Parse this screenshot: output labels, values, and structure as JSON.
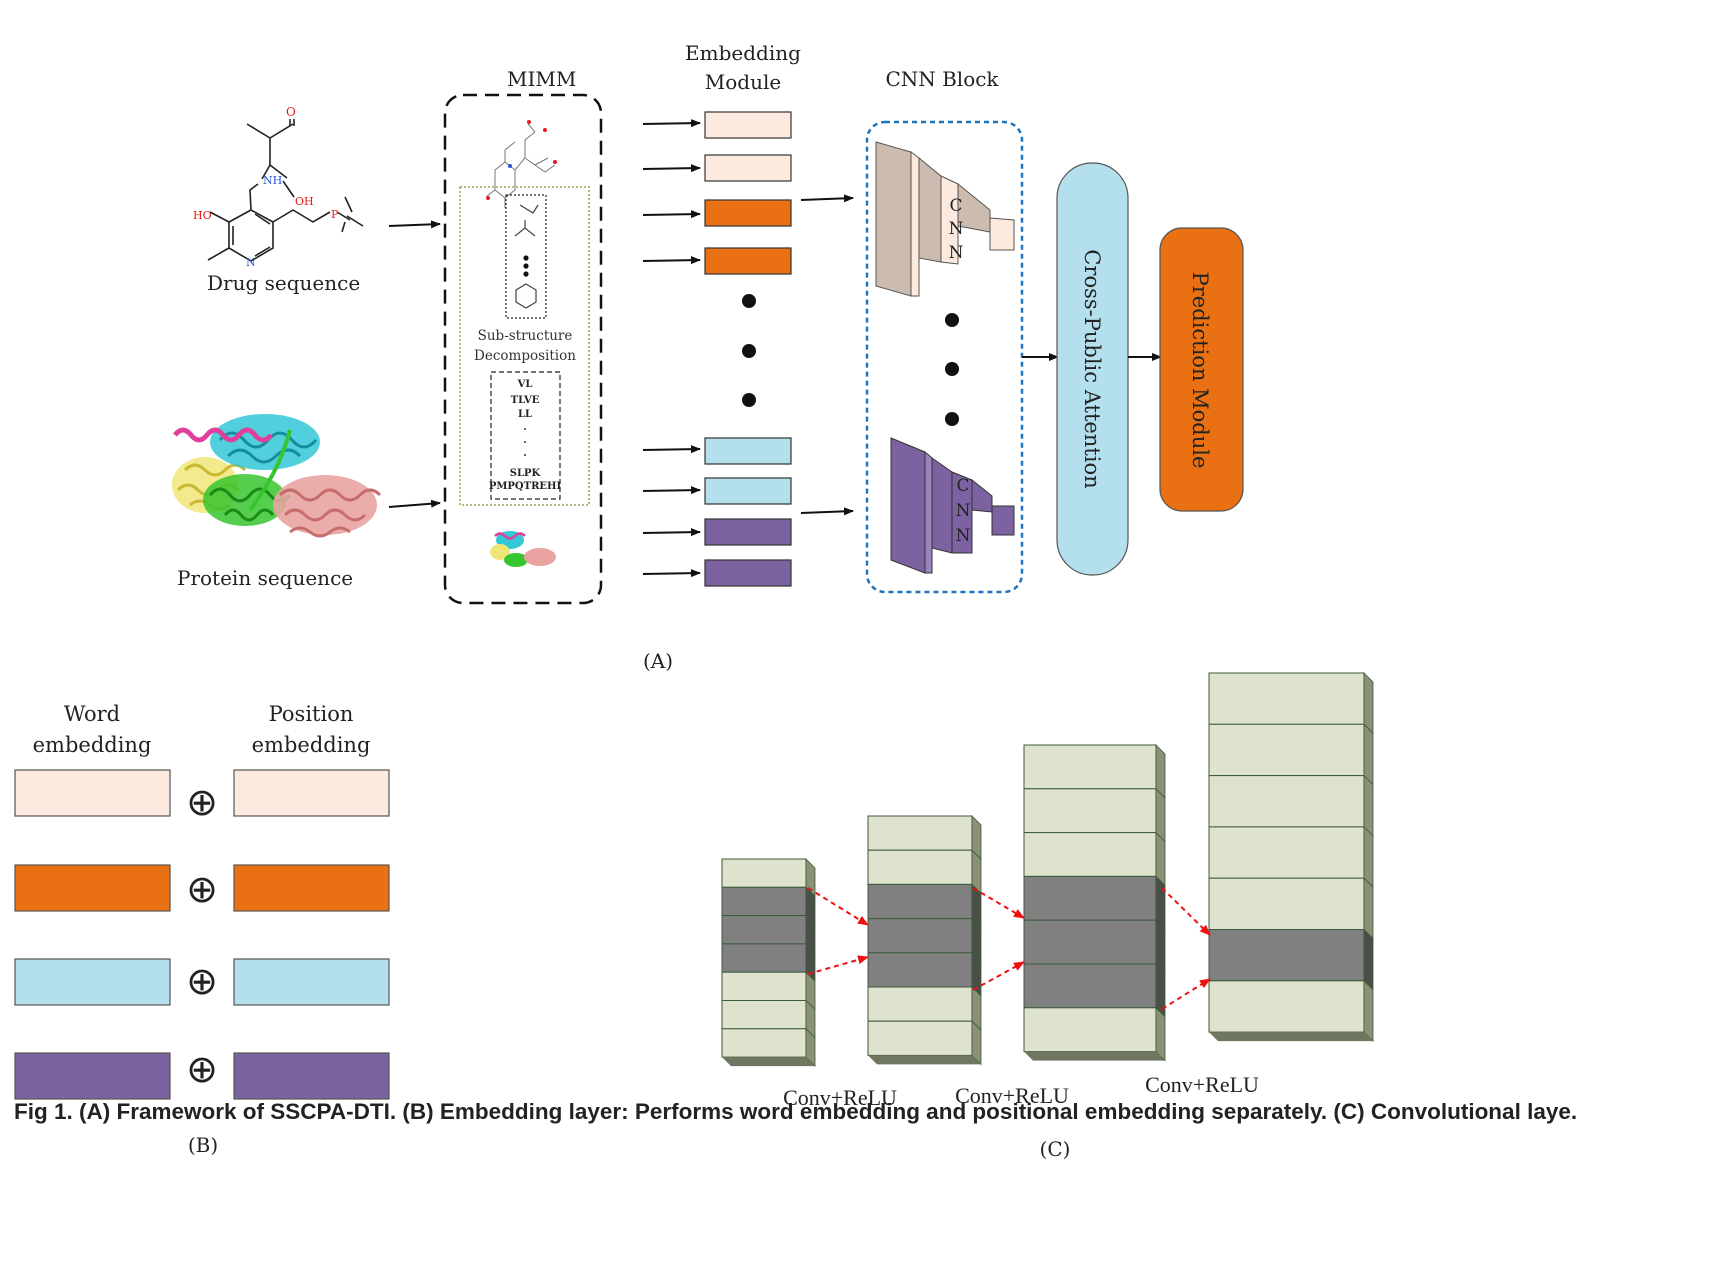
{
  "panel_a": {
    "drug_label": "Drug sequence",
    "protein_label": "Protein sequence",
    "mimm_title": "MIMM",
    "substructure_label_1": "Sub-structure",
    "substructure_label_2": "Decomposition",
    "fragments": [
      "VL",
      "TLVE",
      "LL",
      ".",
      ".",
      ".",
      "SLPK",
      "PMPQTREHI"
    ],
    "embedding_title_1": "Embedding",
    "embedding_title_2": "Module",
    "cnn_block_title": "CNN Block",
    "cnn_letters": [
      "C",
      "N",
      "N"
    ],
    "attention_label": "Cross-Public Attention",
    "prediction_label": "Prediction Module",
    "atom_labels": {
      "oh": "OH",
      "o": "O",
      "nh": "NH",
      "ho": "HO",
      "p": "P",
      "n": "N"
    },
    "panel_label": "(A)"
  },
  "panel_b": {
    "word_label_1": "Word",
    "word_label_2": "embedding",
    "position_label_1": "Position",
    "position_label_2": "embedding",
    "plus_symbol": "⊕",
    "panel_label": "(B)"
  },
  "panel_c": {
    "conv_labels": [
      "Conv+ReLU",
      "Conv+ReLU",
      "Conv+ReLU"
    ],
    "panel_label": "(C)"
  },
  "caption": "Fig 1.  (A) Framework of SSCPA-DTI. (B) Embedding layer: Performs word embedding and positional embedding separately. (C) Convolutional laye.",
  "colors": {
    "peach": "#fdeadf",
    "orange": "#e97113",
    "light_blue": "#b4dfec",
    "purple": "#7c62a0",
    "tan": "#cbbcaf",
    "grey_block": "#808080",
    "pale_green": "#dfe2cc",
    "red_arrow": "#ee1111",
    "cnn_border": "#1f73c0"
  }
}
